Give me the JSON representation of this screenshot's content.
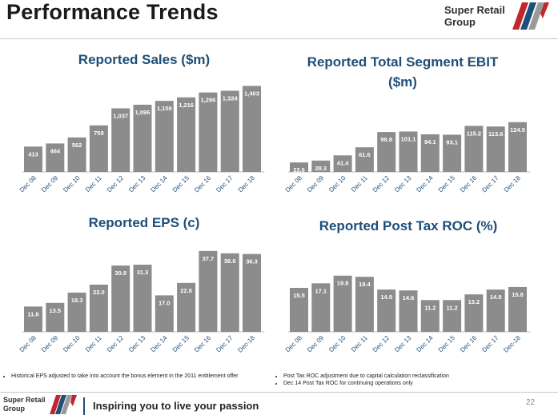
{
  "header": {
    "title": "Performance Trends",
    "logo_line1": "Super Retail",
    "logo_line2": "Group"
  },
  "footer": {
    "tagline": "Inspiring you to live your passion",
    "page_number": "22",
    "logo_line1": "Super Retail",
    "logo_line2": "Group"
  },
  "notes_left": [
    "Historical EPS adjusted to take into account the bonus element in the 2011 entitlement offer"
  ],
  "notes_right": [
    "Post Tax ROC adjustment due to capital calculation reclassification",
    "Dec 14 Post Tax ROC for continuing operations only"
  ],
  "colors": {
    "bar": "#8c8c8c",
    "title": "#1f4e79",
    "stripe_red": "#c0272d",
    "stripe_blue": "#1f4e79",
    "stripe_grey": "#9a9a9a"
  },
  "chart_data": [
    {
      "type": "bar",
      "title": "Reported Sales ($m)",
      "categories": [
        "Dec 08",
        "Dec 09",
        "Dec 10",
        "Dec 11",
        "Dec 12",
        "Dec 13",
        "Dec 14",
        "Dec 15",
        "Dec 16",
        "Dec 17",
        "Dec 18"
      ],
      "values": [
        413,
        464,
        562,
        759,
        1037,
        1096,
        1159,
        1216,
        1296,
        1324,
        1403
      ],
      "labels": [
        "413",
        "464",
        "562",
        "759",
        "1,037",
        "1,096",
        "1,159",
        "1,216",
        "1,296",
        "1,324",
        "1,403"
      ],
      "ylim": [
        0,
        1500
      ]
    },
    {
      "type": "bar",
      "title": "Reported Total Segment EBIT ($m)",
      "categories": [
        "Dec 08",
        "Dec 09",
        "Dec 10",
        "Dec 11",
        "Dec 12",
        "Dec 13",
        "Dec 14",
        "Dec 15",
        "Dec 16",
        "Dec 17",
        "Dec 18"
      ],
      "values": [
        23.6,
        28.3,
        41.4,
        61.6,
        99.8,
        101.1,
        94.1,
        93.1,
        115.2,
        113.6,
        124.5
      ],
      "labels": [
        "23.6",
        "28.3",
        "41.4",
        "61.6",
        "99.8",
        "101.1",
        "94.1",
        "93.1",
        "115.2",
        "113.6",
        "124.5"
      ],
      "ylim": [
        0,
        190
      ]
    },
    {
      "type": "bar",
      "title": "Reported EPS (c)",
      "categories": [
        "Dec 08",
        "Dec 09",
        "Dec 10",
        "Dec 11",
        "Dec 12",
        "Dec 13",
        "Dec 14",
        "Dec 15",
        "Dec 16",
        "Dec 17",
        "Dec-18"
      ],
      "values": [
        11.8,
        13.5,
        18.3,
        22.0,
        30.9,
        31.3,
        17.0,
        22.8,
        37.7,
        36.6,
        36.3
      ],
      "labels": [
        "11.8",
        "13.5",
        "18.3",
        "22.0",
        "30.9",
        "31.3",
        "17.0",
        "22.8",
        "37.7",
        "36.6",
        "36.3"
      ],
      "ylim": [
        0,
        41
      ]
    },
    {
      "type": "bar",
      "title": "Reported Post Tax ROC (%)",
      "categories": [
        "Dec 08",
        "Dec 09",
        "Dec 10",
        "Dec 11",
        "Dec 12",
        "Dec 13",
        "Dec 14",
        "Dec 15",
        "Dec 16",
        "Dec 17",
        "Dec-18"
      ],
      "values": [
        15.5,
        17.1,
        19.8,
        19.4,
        14.9,
        14.6,
        11.2,
        11.2,
        13.2,
        14.9,
        15.8
      ],
      "labels": [
        "15.5",
        "17.1",
        "19.8",
        "19.4",
        "14.9",
        "14.6",
        "11.2",
        "11.2",
        "13.2",
        "14.9",
        "15.8"
      ],
      "ylim": [
        0,
        31
      ]
    }
  ]
}
